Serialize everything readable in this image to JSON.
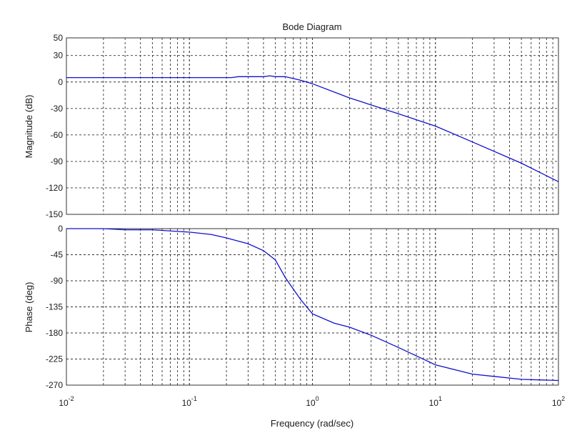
{
  "chart_data": [
    {
      "type": "line",
      "panel": "magnitude",
      "title": "Bode Diagram",
      "ylabel": "Magnitude (dB)",
      "xscale": "log",
      "xlim": [
        0.01,
        100
      ],
      "ylim": [
        -150,
        50
      ],
      "yticks": [
        50,
        30,
        0,
        -30,
        -60,
        -90,
        -120,
        -150
      ],
      "grid": true,
      "series": [
        {
          "color": "#1010d0",
          "x": [
            0.01,
            0.03,
            0.1,
            0.22,
            0.25,
            0.3,
            0.4,
            0.45,
            0.5,
            0.6,
            0.8,
            1,
            2,
            5,
            10,
            20,
            50,
            100
          ],
          "y": [
            5,
            5,
            5,
            5,
            6,
            6,
            6,
            7,
            6,
            6,
            2,
            -2,
            -18,
            -36,
            -50,
            -68,
            -92,
            -113
          ]
        }
      ]
    },
    {
      "type": "line",
      "panel": "phase",
      "xlabel": "Frequency  (rad/sec)",
      "ylabel": "Phase (deg)",
      "xscale": "log",
      "xlim": [
        0.01,
        100
      ],
      "ylim": [
        -270,
        0
      ],
      "yticks": [
        0,
        -45,
        -90,
        -135,
        -180,
        -225,
        -270
      ],
      "xticks": [
        "10^-2",
        "10^-1",
        "10^0",
        "10^1",
        "10^2"
      ],
      "grid": true,
      "series": [
        {
          "color": "#1010d0",
          "x": [
            0.01,
            0.02,
            0.03,
            0.05,
            0.1,
            0.15,
            0.2,
            0.3,
            0.4,
            0.5,
            0.6,
            0.8,
            1,
            1.5,
            2,
            3,
            5,
            10,
            20,
            30,
            50,
            100
          ],
          "y": [
            0,
            0,
            -2,
            -2,
            -6,
            -10,
            -16,
            -26,
            -38,
            -54,
            -84,
            -122,
            -147,
            -163,
            -170,
            -184,
            -205,
            -235,
            -251,
            -255,
            -260,
            -262
          ]
        }
      ]
    }
  ],
  "x_tick_base": "10",
  "x_tick_exponents": [
    "-2",
    "-1",
    "0",
    "1",
    "2"
  ],
  "colors": {
    "line": "#1010d0",
    "axes": "#333333"
  }
}
